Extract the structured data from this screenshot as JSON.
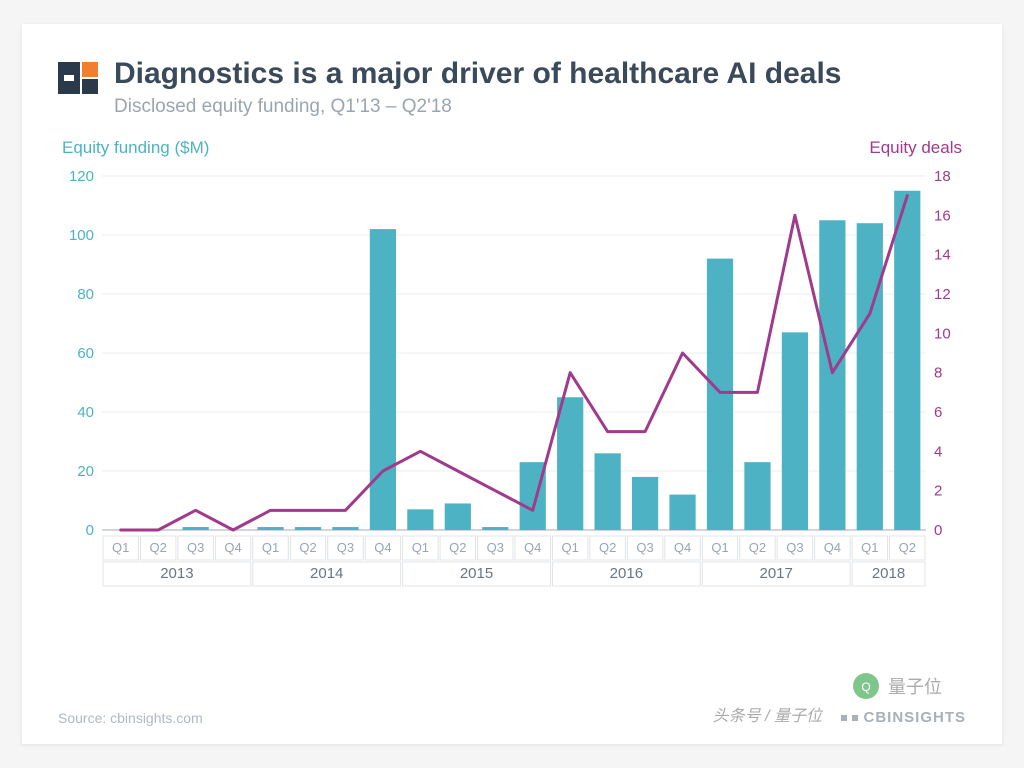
{
  "header": {
    "title": "Diagnostics is a major driver of healthcare AI deals",
    "subtitle": "Disclosed equity funding, Q1'13  – Q2'18"
  },
  "chart": {
    "type": "bar+line",
    "y_left": {
      "label": "Equity funding ($M)",
      "min": 0,
      "max": 120,
      "ticks": [
        0,
        20,
        40,
        60,
        80,
        100,
        120
      ],
      "color": "#4db3c4"
    },
    "y_right": {
      "label": "Equity deals",
      "min": 0,
      "max": 18,
      "ticks": [
        0,
        2,
        4,
        6,
        8,
        10,
        12,
        14,
        16,
        18
      ],
      "color": "#a03a8c"
    },
    "background_color": "#ffffff",
    "grid_color": "#e8ecef",
    "bar_color": "#4db3c4",
    "line_color": "#a03a8c",
    "line_width": 3,
    "bar_width_ratio": 0.7,
    "years": [
      {
        "year": "2013",
        "quarters": [
          "Q1",
          "Q2",
          "Q3",
          "Q4"
        ]
      },
      {
        "year": "2014",
        "quarters": [
          "Q1",
          "Q2",
          "Q3",
          "Q4"
        ]
      },
      {
        "year": "2015",
        "quarters": [
          "Q1",
          "Q2",
          "Q3",
          "Q4"
        ]
      },
      {
        "year": "2016",
        "quarters": [
          "Q1",
          "Q2",
          "Q3",
          "Q4"
        ]
      },
      {
        "year": "2017",
        "quarters": [
          "Q1",
          "Q2",
          "Q3",
          "Q4"
        ]
      },
      {
        "year": "2018",
        "quarters": [
          "Q1",
          "Q2"
        ]
      }
    ],
    "funding_values": [
      0,
      0,
      1,
      0,
      1,
      1,
      1,
      102,
      7,
      9,
      1,
      23,
      45,
      26,
      18,
      12,
      92,
      23,
      67,
      105,
      104,
      115
    ],
    "deals_values": [
      0,
      0,
      1,
      0,
      1,
      1,
      1,
      3,
      4,
      3,
      2,
      1,
      8,
      5,
      5,
      9,
      7,
      7,
      16,
      8,
      11,
      17
    ]
  },
  "footer": {
    "source": "Source: cbinsights.com",
    "brand": "CBINSIGHTS"
  },
  "watermark": {
    "text1": "量子位",
    "text2": "头条号 / 量子位"
  },
  "logo_colors": {
    "left": "#2a3a4a",
    "right_top": "#f08030",
    "right_bottom": "#2a3a4a"
  }
}
